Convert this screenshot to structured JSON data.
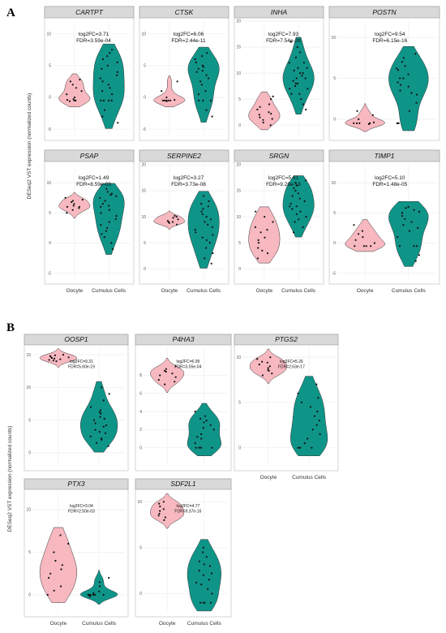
{
  "figure": {
    "panels": [
      {
        "letter": "A",
        "ylabel": "DESeq2 VST expression (normalized counts)"
      },
      {
        "letter": "B",
        "ylabel": "DESeq2 VST expression (normalized counts)"
      }
    ]
  },
  "colors": {
    "oocyte": "#f7b8c0",
    "cumulus": "#0f9488",
    "strip": "#d9d9d9",
    "grid": "#eeeeee",
    "point": "#111111"
  },
  "chart_data": [
    {
      "type": "violin",
      "gene": "CARTPT",
      "annotation": [
        "log2FC=3.71",
        "FDR=3.59e-04"
      ],
      "categories": [
        "Oocyte",
        "Cumulus Cells"
      ],
      "ylim": [
        -6,
        12
      ],
      "yticks": [
        -5,
        0,
        5,
        10
      ],
      "series": [
        {
          "name": "Oocyte",
          "values": [
            -0.5,
            -0.5,
            -0.4,
            -0.6,
            -0.3,
            0,
            0.5,
            1,
            1.5,
            2,
            2.5,
            2.8
          ]
        },
        {
          "name": "Cumulus Cells",
          "values": [
            -0.5,
            -0.5,
            -0.5,
            -0.5,
            0.5,
            1,
            1.5,
            2,
            2.5,
            3,
            3.5,
            4,
            4.5,
            5,
            5.5,
            6,
            6.5,
            7,
            7.5,
            -2,
            -3,
            -4
          ]
        }
      ]
    },
    {
      "type": "violin",
      "gene": "CTSK",
      "annotation": [
        "log2FC=6.06",
        "FDR=2.44e-11"
      ],
      "categories": [
        "Oocyte",
        "Cumulus Cells"
      ],
      "ylim": [
        -6,
        12
      ],
      "yticks": [
        -5,
        0,
        5,
        10
      ],
      "series": [
        {
          "name": "Oocyte",
          "values": [
            -0.5,
            -0.5,
            -0.5,
            -0.5,
            -0.5,
            -0.4,
            -0.6,
            0,
            1,
            2.5
          ]
        },
        {
          "name": "Cumulus Cells",
          "values": [
            -0.5,
            -0.5,
            -0.5,
            0.5,
            1,
            2,
            3,
            3.5,
            4,
            4.5,
            5,
            5.5,
            6,
            6.5,
            7,
            -2,
            -3,
            2.5,
            5,
            4.8,
            4.2
          ]
        }
      ]
    },
    {
      "type": "violin",
      "gene": "INHA",
      "annotation": [
        "log2FC=7.93",
        "FDR=7.54e-28"
      ],
      "categories": [
        "Oocyte",
        "Cumulus Cells"
      ],
      "ylim": [
        -2,
        20
      ],
      "yticks": [
        0,
        5,
        10,
        15,
        20
      ],
      "series": [
        {
          "name": "Oocyte",
          "values": [
            0,
            0.5,
            1,
            1.5,
            2,
            2.5,
            3,
            3.5,
            4,
            5,
            5.5,
            1.2,
            2.2
          ]
        },
        {
          "name": "Cumulus Cells",
          "values": [
            4,
            5,
            6,
            7,
            7.5,
            8,
            8.5,
            9,
            9.5,
            10,
            10.5,
            11,
            12,
            13,
            14,
            15,
            16,
            7,
            8,
            9,
            10,
            11,
            6,
            12,
            3
          ]
        }
      ]
    },
    {
      "type": "violin",
      "gene": "POSTN",
      "annotation": [
        "log2FC=9.54",
        "FDR=6.15e-16"
      ],
      "categories": [
        "Oocyte",
        "Cumulus Cells"
      ],
      "ylim": [
        -2,
        12
      ],
      "yticks": [
        0,
        5,
        10
      ],
      "series": [
        {
          "name": "Oocyte",
          "values": [
            -0.5,
            -0.5,
            -0.5,
            -0.5,
            -0.5,
            -0.6,
            -0.4,
            0,
            0.5,
            1
          ]
        },
        {
          "name": "Cumulus Cells",
          "values": [
            -0.5,
            -0.5,
            -0.5,
            1,
            2,
            3,
            3.5,
            4,
            4.5,
            5,
            5.5,
            6,
            6.5,
            7,
            7.5,
            8,
            5,
            4.2,
            6.2,
            3.2
          ]
        }
      ]
    },
    {
      "type": "violin",
      "gene": "PSAP",
      "annotation": [
        "log2FC=1.49",
        "FDR=8.59e-03"
      ],
      "categories": [
        "Oocyte",
        "Cumulus Cells"
      ],
      "ylim": [
        -6,
        13
      ],
      "yticks": [
        -5,
        0,
        5,
        10
      ],
      "series": [
        {
          "name": "Oocyte",
          "values": [
            5,
            5.5,
            6,
            6.5,
            7,
            7.5,
            6,
            6.2,
            5.8,
            6.8,
            7.2
          ]
        },
        {
          "name": "Cumulus Cells",
          "values": [
            -1,
            0,
            1,
            2,
            3,
            4,
            5,
            6,
            6.5,
            7,
            7.5,
            8,
            8.5,
            9,
            5.5,
            4.5,
            3.5,
            2.5,
            1.5,
            7.8,
            8.2,
            6.2
          ]
        }
      ]
    },
    {
      "type": "violin",
      "gene": "SERPINE2",
      "annotation": [
        "log2FC=3.27",
        "FDR=3.73e-08"
      ],
      "categories": [
        "Oocyte",
        "Cumulus Cells"
      ],
      "ylim": [
        -2,
        20
      ],
      "yticks": [
        0,
        5,
        10,
        15,
        20
      ],
      "series": [
        {
          "name": "Oocyte",
          "values": [
            8.5,
            9,
            9,
            9.5,
            10,
            9.2,
            8.8,
            9.8,
            10.2
          ]
        },
        {
          "name": "Cumulus Cells",
          "values": [
            1,
            2,
            3,
            4,
            5,
            6,
            7,
            8,
            9,
            10,
            11,
            12,
            13,
            14,
            10.5,
            9.5,
            8.5,
            7.5,
            12.5,
            11.5,
            6.5,
            5.5
          ]
        }
      ]
    },
    {
      "type": "violin",
      "gene": "SRGN",
      "annotation": [
        "log2FC=5.61",
        "FDR=9.28e-18"
      ],
      "categories": [
        "Oocyte",
        "Cumulus Cells"
      ],
      "ylim": [
        -2,
        20
      ],
      "yticks": [
        0,
        5,
        10,
        15,
        20
      ],
      "series": [
        {
          "name": "Oocyte",
          "values": [
            2,
            3,
            4,
            5,
            6,
            7,
            8,
            9,
            10,
            11,
            3.5,
            5.5,
            7.5
          ]
        },
        {
          "name": "Cumulus Cells",
          "values": [
            7,
            8,
            9,
            10,
            11,
            12,
            13,
            14,
            15,
            16,
            17,
            13.5,
            12.5,
            11.5,
            14.5,
            15.5,
            10.5,
            9.5,
            16.5,
            12
          ]
        }
      ]
    },
    {
      "type": "violin",
      "gene": "TIMP1",
      "annotation": [
        "log2FC=5.10",
        "FDR=1.48e-05"
      ],
      "categories": [
        "Oocyte",
        "Cumulus Cells"
      ],
      "ylim": [
        -6,
        13
      ],
      "yticks": [
        -5,
        0,
        5,
        10
      ],
      "series": [
        {
          "name": "Oocyte",
          "values": [
            -0.5,
            -0.5,
            -0.5,
            -0.5,
            0,
            0.5,
            1,
            1.5,
            2,
            3
          ]
        },
        {
          "name": "Cumulus Cells",
          "values": [
            -0.5,
            -0.5,
            -0.5,
            1,
            2,
            3,
            4,
            5,
            5.5,
            6,
            4.5,
            3.5,
            2.5,
            5.2,
            5.8,
            -2,
            -3
          ]
        }
      ]
    },
    {
      "type": "violin",
      "gene": "OOSP1",
      "annotation": [
        "log2FC=9.31",
        "FDR=5.60e-19"
      ],
      "categories": [
        "Oocyte",
        "Cumulus Cells"
      ],
      "ylim": [
        -2,
        16
      ],
      "yticks": [
        0,
        5,
        10,
        15
      ],
      "series": [
        {
          "name": "Oocyte",
          "values": [
            14,
            14.2,
            14.5,
            14.8,
            15,
            14.3,
            14.6,
            14.1,
            14.9,
            14.4,
            14.7
          ]
        },
        {
          "name": "Cumulus Cells",
          "values": [
            1,
            2,
            3,
            4,
            5,
            6,
            7,
            8,
            9,
            10,
            3.5,
            4.5,
            5.5,
            6.5,
            2.5,
            1.5,
            4.2,
            5.2,
            3.2,
            6.2,
            2.2
          ]
        }
      ]
    },
    {
      "type": "violin",
      "gene": "P4HA3",
      "annotation": [
        "log2FC=6.99",
        "FDR=3.55e-04"
      ],
      "categories": [
        "Oocyte",
        "Cumulus Cells"
      ],
      "ylim": [
        -2,
        11
      ],
      "yticks": [
        0,
        2,
        4,
        6,
        8
      ],
      "series": [
        {
          "name": "Oocyte",
          "values": [
            7,
            7.5,
            8,
            8.5,
            9,
            8.2,
            7.8,
            8.7,
            7.3,
            8.4
          ]
        },
        {
          "name": "Cumulus Cells",
          "values": [
            0,
            0,
            0,
            0,
            0,
            0.5,
            1,
            1.5,
            2,
            2.5,
            3,
            3.5,
            4,
            2.2,
            1.2,
            2.8,
            3.2
          ]
        }
      ]
    },
    {
      "type": "violin",
      "gene": "PTGS2",
      "annotation": [
        "log2FC=5.26",
        "FDR=2.63e-17"
      ],
      "categories": [
        "Oocyte",
        "Cumulus Cells"
      ],
      "ylim": [
        -2,
        11
      ],
      "yticks": [
        0,
        5,
        10
      ],
      "series": [
        {
          "name": "Oocyte",
          "values": [
            8,
            8.5,
            9,
            9.5,
            10,
            8.2,
            8.8,
            9.2,
            9.8,
            8.6,
            9.4
          ]
        },
        {
          "name": "Cumulus Cells",
          "values": [
            0,
            0,
            0,
            0,
            0.5,
            1,
            2,
            3,
            4,
            5,
            6,
            7,
            1.5,
            2.5,
            3.5,
            4.5,
            5.5
          ]
        }
      ]
    },
    {
      "type": "violin",
      "gene": "PTX3",
      "annotation": [
        "log2FC=3.04",
        "FDR=2.50e-03"
      ],
      "categories": [
        "Oocyte",
        "Cumulus Cells"
      ],
      "ylim": [
        -2,
        12
      ],
      "yticks": [
        0,
        5,
        10
      ],
      "series": [
        {
          "name": "Oocyte",
          "values": [
            0,
            0.5,
            1,
            2,
            3,
            4,
            5,
            6,
            7,
            2.5,
            3.5
          ]
        },
        {
          "name": "Cumulus Cells",
          "values": [
            0,
            0,
            0,
            0,
            0,
            0,
            0.2,
            0.4,
            1,
            1.5,
            2,
            -0.2
          ]
        }
      ]
    },
    {
      "type": "violin",
      "gene": "SDF2L1",
      "annotation": [
        "log2FC=4.77",
        "FDR=9.37e-16"
      ],
      "categories": [
        "Oocyte",
        "Cumulus Cells"
      ],
      "ylim": [
        -2,
        11
      ],
      "yticks": [
        0,
        5,
        10
      ],
      "series": [
        {
          "name": "Oocyte",
          "values": [
            8,
            8.5,
            9,
            9.5,
            10,
            8.7,
            9.2,
            9.8,
            8.3
          ]
        },
        {
          "name": "Cumulus Cells",
          "values": [
            -1,
            -1,
            -1,
            -1,
            0,
            0.5,
            1,
            1.5,
            2,
            2.5,
            3,
            3.5,
            4,
            4.5,
            5,
            2.2,
            1.2,
            3.2
          ]
        }
      ]
    }
  ]
}
